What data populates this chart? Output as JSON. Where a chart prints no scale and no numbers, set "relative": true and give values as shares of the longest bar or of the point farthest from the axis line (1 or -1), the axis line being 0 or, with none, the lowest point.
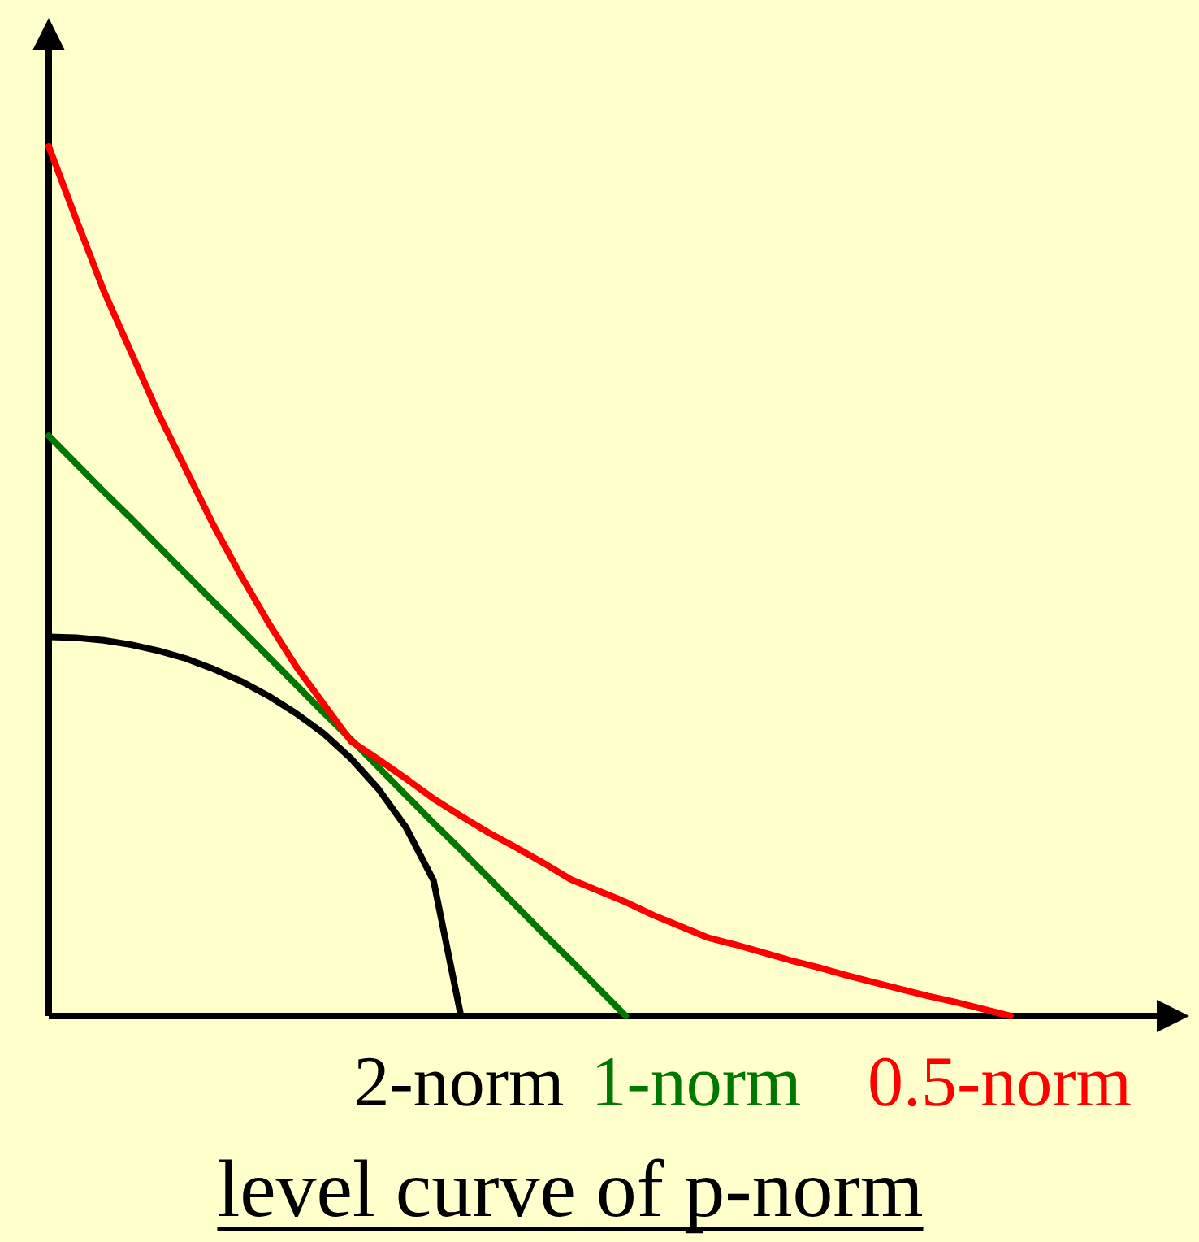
{
  "chart_data": {
    "type": "line",
    "title": "level curve of p-norm",
    "relative": true,
    "line_style": "solid",
    "categories": [
      null,
      null,
      null,
      null,
      null,
      null,
      null,
      null,
      null,
      null,
      null,
      null,
      null,
      null,
      null,
      null,
      null,
      null,
      null,
      null,
      null,
      null,
      null,
      null,
      null,
      null,
      null,
      null,
      null,
      null,
      null,
      null,
      null,
      null,
      null,
      null
    ],
    "series": [
      {
        "name": "2-norm",
        "color": "#000000",
        "values": [
          0.436,
          0.435,
          0.432,
          0.427,
          0.42,
          0.411,
          0.399,
          0.385,
          0.368,
          0.348,
          0.325,
          0.296,
          0.261,
          0.217,
          0.156,
          0,
          null,
          null,
          null,
          null,
          null,
          null,
          null,
          null,
          null,
          null,
          null,
          null,
          null,
          null,
          null,
          null,
          null,
          null,
          null,
          null
        ]
      },
      {
        "name": "1-norm",
        "color": "#007700",
        "values": [
          0.667,
          0.635,
          0.603,
          0.572,
          0.54,
          0.508,
          0.476,
          0.445,
          0.413,
          0.381,
          0.349,
          0.318,
          0.286,
          0.254,
          0.222,
          0.191,
          0.159,
          0.127,
          0.095,
          0.064,
          0.032,
          0,
          null,
          null,
          null,
          null,
          null,
          null,
          null,
          null,
          null,
          null,
          null,
          null,
          null,
          null
        ]
      },
      {
        "name": "0.5-norm",
        "color": "#ff0000",
        "values": [
          1,
          0.916,
          0.834,
          0.763,
          0.692,
          0.628,
          0.564,
          0.506,
          0.452,
          0.402,
          0.359,
          0.316,
          0.295,
          0.273,
          0.25,
          0.23,
          0.211,
          0.194,
          0.176,
          0.157,
          0.144,
          0.131,
          0.116,
          0.103,
          0.09,
          0.082,
          0.073,
          0.064,
          0.056,
          0.047,
          0.039,
          0.031,
          0.023,
          0.016,
          0.008,
          0
        ]
      }
    ]
  }
}
